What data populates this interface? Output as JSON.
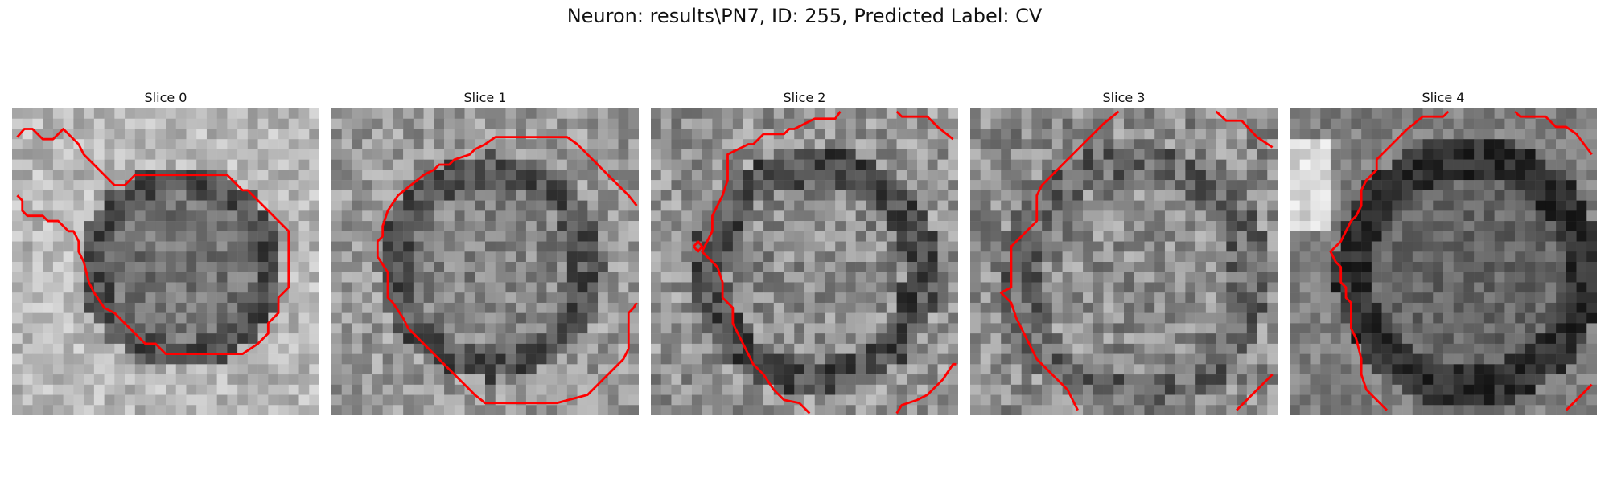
{
  "figure": {
    "title": "Neuron: results\\PN7, ID: 255, Predicted Label: CV",
    "overlay_color": "#ff0000",
    "image_style": "grayscale noisy microscopy patch, 30x30 pixels",
    "panels": [
      {
        "title": "Slice 0"
      },
      {
        "title": "Slice 1"
      },
      {
        "title": "Slice 2"
      },
      {
        "title": "Slice 3"
      },
      {
        "title": "Slice 4"
      }
    ]
  }
}
